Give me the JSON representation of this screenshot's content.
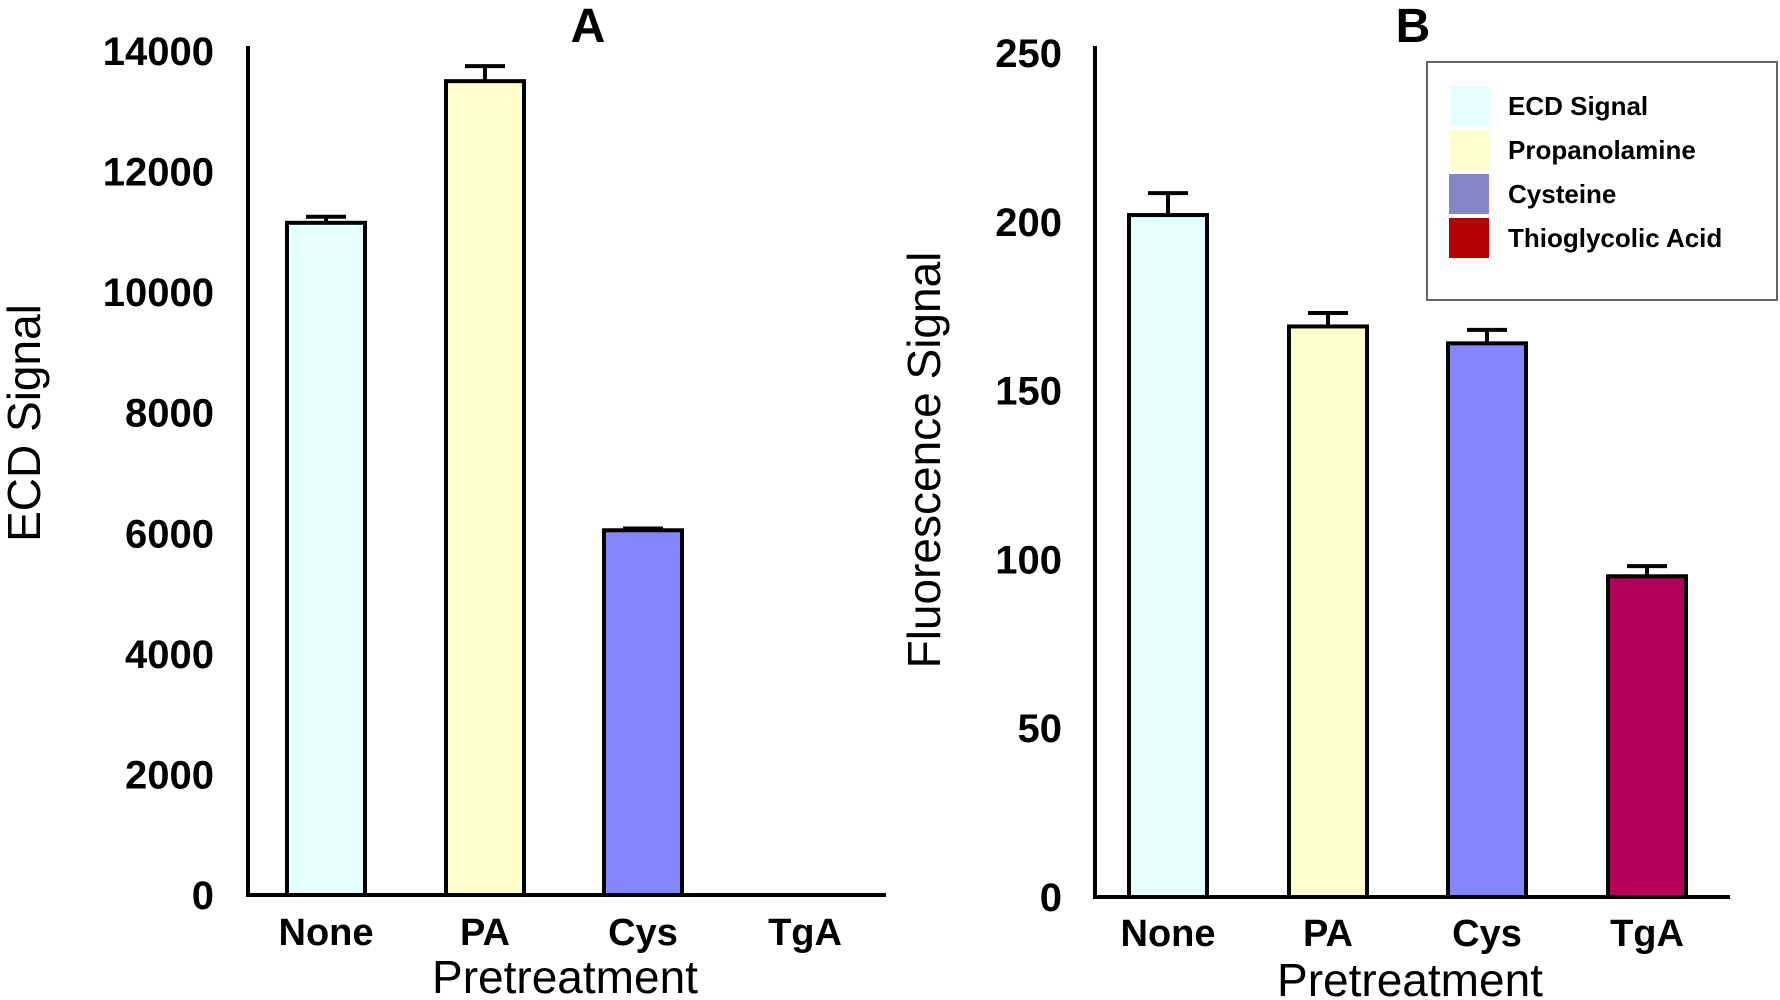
{
  "chart_data": [
    {
      "type": "bar",
      "title": "A",
      "xlabel": "Pretreatment",
      "ylabel": "ECD Signal",
      "categories": [
        "None",
        "PA",
        "Cys",
        "TgA"
      ],
      "values": [
        11150,
        13500,
        6050,
        0
      ],
      "errors": [
        100,
        250,
        30,
        0
      ],
      "colors": [
        "#e6ffff",
        "#ffffcc",
        "#8585ff",
        "#ffffff"
      ],
      "ylim": [
        0,
        14000
      ],
      "yticks": [
        "0",
        "2000",
        "4000",
        "6000",
        "8000",
        "10000",
        "12000",
        "14000"
      ]
    },
    {
      "type": "bar",
      "title": "B",
      "xlabel": "Pretreatment",
      "ylabel": "Fluorescence Signal",
      "categories": [
        "None",
        "PA",
        "Cys",
        "TgA"
      ],
      "values": [
        202,
        169,
        164,
        95
      ],
      "errors": [
        6.5,
        4,
        4,
        3
      ],
      "colors": [
        "#e6ffff",
        "#ffffcc",
        "#8585ff",
        "#b3005a"
      ],
      "ylim": [
        0,
        250
      ],
      "yticks": [
        "0",
        "50",
        "100",
        "150",
        "200",
        "250"
      ],
      "legend": {
        "position": "top-right",
        "entries": [
          {
            "label": "ECD Signal",
            "color": "#e6ffff"
          },
          {
            "label": "Propanolamine",
            "color": "#ffffcc"
          },
          {
            "label": "Cysteine",
            "color": "#8585c8"
          },
          {
            "label": "Thioglycolic Acid",
            "color": "#b30000"
          }
        ]
      }
    }
  ]
}
